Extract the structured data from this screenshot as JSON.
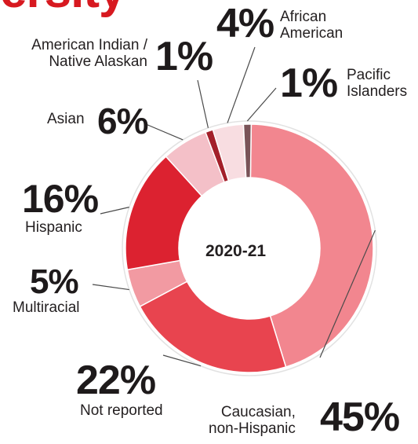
{
  "title_fragment": "ersity",
  "chart_data": {
    "type": "pie",
    "subtype": "donut",
    "center_label": "2020-21",
    "slices": [
      {
        "label_lines": [
          "Caucasian,",
          "non-Hispanic"
        ],
        "value": 45,
        "pct_text": "45%",
        "color": "#f2868f"
      },
      {
        "label_lines": [
          "Not reported"
        ],
        "value": 22,
        "pct_text": "22%",
        "color": "#e8444f"
      },
      {
        "label_lines": [
          "Multiracial"
        ],
        "value": 5,
        "pct_text": "5%",
        "color": "#f29aa2"
      },
      {
        "label_lines": [
          "Hispanic"
        ],
        "value": 16,
        "pct_text": "16%",
        "color": "#dc2230"
      },
      {
        "label_lines": [
          "Asian"
        ],
        "value": 6,
        "pct_text": "6%",
        "color": "#f4c0c8"
      },
      {
        "label_lines": [
          "American Indian /",
          "Native Alaskan"
        ],
        "value": 1,
        "pct_text": "1%",
        "color": "#a3202a"
      },
      {
        "label_lines": [
          "African",
          "American"
        ],
        "value": 4,
        "pct_text": "4%",
        "color": "#f8dde1"
      },
      {
        "label_lines": [
          "Pacific",
          "Islanders"
        ],
        "value": 1,
        "pct_text": "1%",
        "color": "#7a5358"
      }
    ]
  }
}
